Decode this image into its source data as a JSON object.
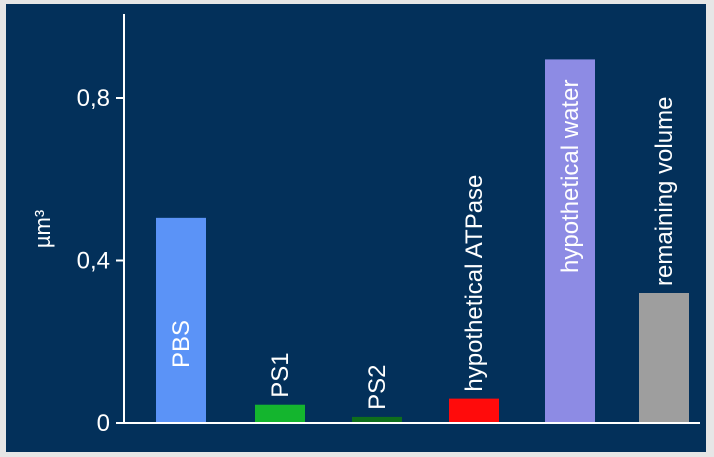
{
  "chart_data": {
    "type": "bar",
    "title": "",
    "xlabel": "",
    "ylabel": "µm³",
    "ylim": [
      0,
      1.0
    ],
    "yticks": [
      0,
      0.4,
      0.8
    ],
    "ytick_labels": [
      "0",
      "0,4",
      "0,8"
    ],
    "grid": false,
    "categories": [
      "PBS",
      "PS1",
      "PS2",
      "hypothetical ATPase",
      "hypothetical water",
      "remaining volume"
    ],
    "values": [
      0.505,
      0.045,
      0.015,
      0.06,
      0.895,
      0.32
    ],
    "colors": [
      "#5b93f7",
      "#14b52e",
      "#0f6e1c",
      "#ff0b0b",
      "#8d8be4",
      "#9e9e9e"
    ],
    "background": "#03305a",
    "axis_color": "#ffffff"
  }
}
